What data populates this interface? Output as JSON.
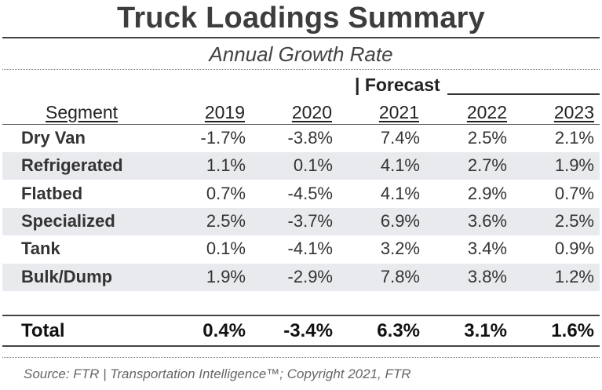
{
  "title": "Truck Loadings Summary",
  "subtitle": "Annual Growth Rate",
  "forecast_label": "| Forecast",
  "header": {
    "segment": "Segment",
    "years": [
      "2019",
      "2020",
      "2021",
      "2022",
      "2023"
    ]
  },
  "rows": [
    {
      "segment": "Dry Van",
      "values": [
        "-1.7%",
        "-3.8%",
        "7.4%",
        "2.5%",
        "2.1%"
      ]
    },
    {
      "segment": "Refrigerated",
      "values": [
        "1.1%",
        "0.1%",
        "4.1%",
        "2.7%",
        "1.9%"
      ]
    },
    {
      "segment": "Flatbed",
      "values": [
        "0.7%",
        "-4.5%",
        "4.1%",
        "2.9%",
        "0.7%"
      ]
    },
    {
      "segment": "Specialized",
      "values": [
        "2.5%",
        "-3.7%",
        "6.9%",
        "3.6%",
        "2.5%"
      ]
    },
    {
      "segment": "Tank",
      "values": [
        "0.1%",
        "-4.1%",
        "3.2%",
        "3.4%",
        "0.9%"
      ]
    },
    {
      "segment": "Bulk/Dump",
      "values": [
        "1.9%",
        "-2.9%",
        "7.8%",
        "3.8%",
        "1.2%"
      ]
    }
  ],
  "total": {
    "segment": "Total",
    "values": [
      "0.4%",
      "-3.4%",
      "6.3%",
      "3.1%",
      "1.6%"
    ]
  },
  "source": "Source: FTR | Transportation Intelligence™; Copyright 2021, FTR",
  "colors": {
    "row_shade": "#e9eaed",
    "title": "#3d3d3d"
  }
}
